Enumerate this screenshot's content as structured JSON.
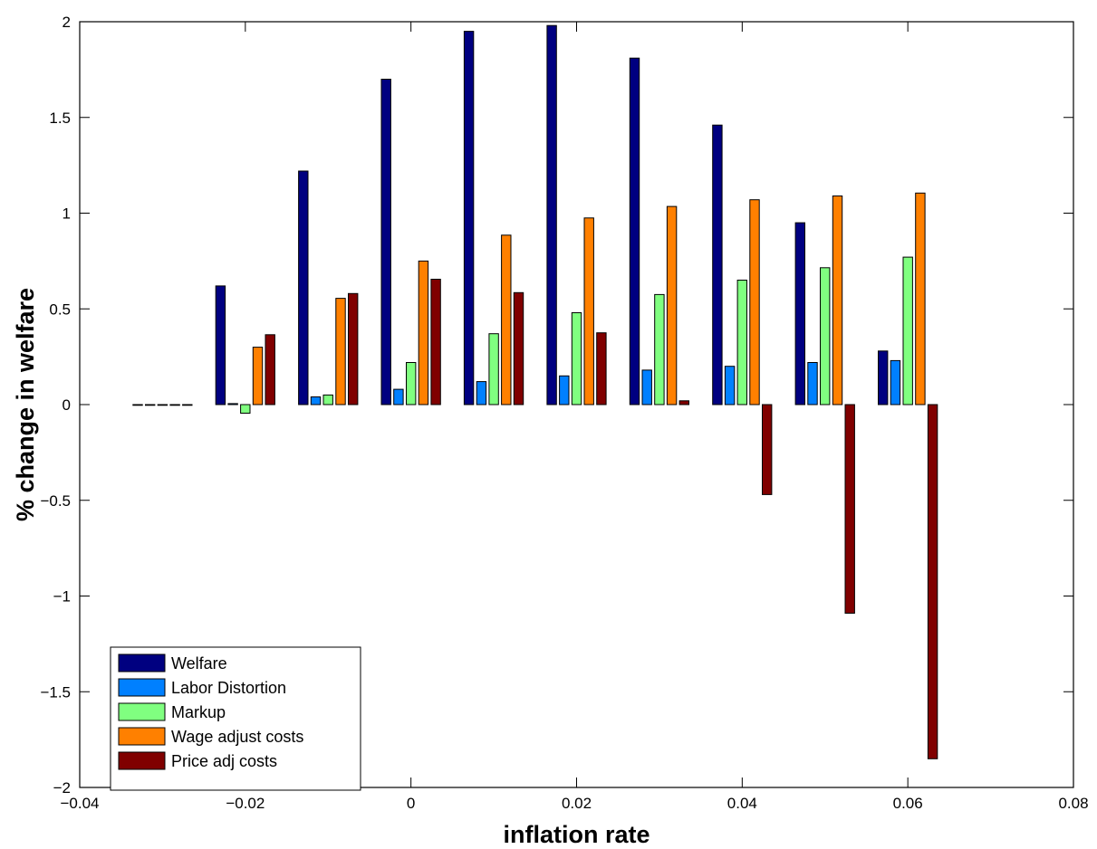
{
  "chart_data": {
    "type": "bar",
    "xlabel": "inflation rate",
    "ylabel": "% change in welfare",
    "xlim": [
      -0.04,
      0.08
    ],
    "ylim": [
      -2,
      2
    ],
    "xticks": [
      -0.04,
      -0.02,
      0,
      0.02,
      0.04,
      0.06,
      0.08
    ],
    "xtick_labels": [
      "−0.04",
      "−0.02",
      "0",
      "0.02",
      "0.04",
      "0.06",
      "0.08"
    ],
    "yticks": [
      -2,
      -1.5,
      -1,
      -0.5,
      0,
      0.5,
      1,
      1.5,
      2
    ],
    "ytick_labels": [
      "−2",
      "−1.5",
      "−1",
      "−0.5",
      "0",
      "0.5",
      "1",
      "1.5",
      "2"
    ],
    "x": [
      -0.03,
      -0.02,
      -0.01,
      0,
      0.01,
      0.02,
      0.03,
      0.04,
      0.05,
      0.06
    ],
    "group_width": 0.0075,
    "legend_position": "bottom-left",
    "grid": false,
    "series": [
      {
        "name": "Welfare",
        "color": "#000080",
        "values": [
          0,
          0.62,
          1.22,
          1.7,
          1.95,
          1.98,
          1.81,
          1.46,
          0.95,
          0.28
        ]
      },
      {
        "name": "Labor Distortion",
        "color": "#0080ff",
        "values": [
          0,
          0.005,
          0.04,
          0.08,
          0.12,
          0.15,
          0.18,
          0.2,
          0.22,
          0.23
        ]
      },
      {
        "name": "Markup",
        "color": "#80ff80",
        "values": [
          0,
          -0.045,
          0.05,
          0.22,
          0.37,
          0.48,
          0.575,
          0.65,
          0.715,
          0.77
        ]
      },
      {
        "name": "Wage adjust costs",
        "color": "#ff8000",
        "values": [
          0,
          0.3,
          0.555,
          0.75,
          0.885,
          0.975,
          1.035,
          1.07,
          1.09,
          1.105
        ]
      },
      {
        "name": "Price adj costs",
        "color": "#800000",
        "values": [
          0,
          0.365,
          0.58,
          0.655,
          0.585,
          0.375,
          0.02,
          -0.47,
          -1.09,
          -1.85
        ]
      }
    ]
  }
}
